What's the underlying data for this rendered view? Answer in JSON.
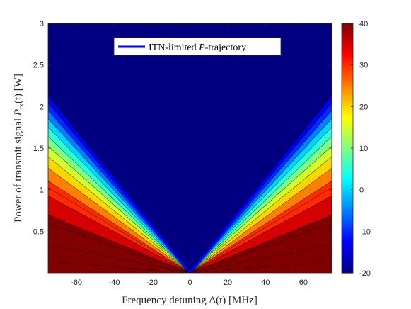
{
  "chart_data": {
    "type": "heatmap",
    "title": "",
    "xlabel": "Frequency detuning Δ(t) [MHz]",
    "ylabel": "Power of transmit signal P_tx(t) [W]",
    "ylabel_main": "Power of transmit signal ",
    "ylabel_var": "P",
    "ylabel_sub": "tx",
    "ylabel_arg": "(t) [W]",
    "xlim": [
      -75,
      75
    ],
    "ylim": [
      0,
      3
    ],
    "xticks": [
      -60,
      -40,
      -20,
      0,
      20,
      40,
      60
    ],
    "yticks": [
      0.5,
      1,
      1.5,
      2,
      2.5,
      3
    ],
    "colorbar": {
      "range": [
        -20,
        40
      ],
      "ticks": [
        40,
        30,
        20,
        10,
        0,
        -10,
        -20
      ],
      "colormap": "jet",
      "contour_step": 5
    },
    "series": [
      {
        "name": "ITN-limited P-trajectory",
        "color": "#0000ff",
        "x": [
          -75,
          0,
          75
        ],
        "y": [
          2.1,
          0,
          2.1
        ]
      }
    ],
    "legend": {
      "placement": "top",
      "label_prefix": "ITN-limited ",
      "label_var": "P",
      "label_suffix": "-trajectory"
    },
    "colors": {
      "line": "#0000ff",
      "contour_line": "#000000",
      "axis": "#262626"
    }
  }
}
